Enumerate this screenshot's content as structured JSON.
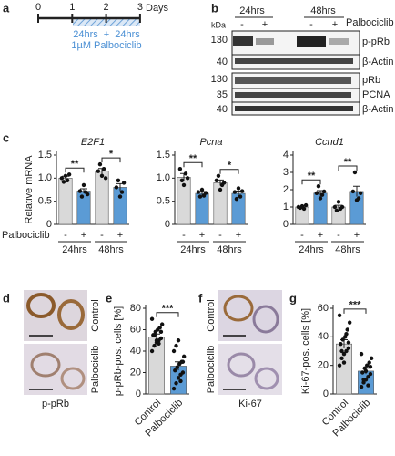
{
  "panel_labels": [
    "a",
    "b",
    "c",
    "d",
    "e",
    "f",
    "g"
  ],
  "timeline": {
    "ticks": [
      0,
      1,
      2,
      3
    ],
    "unit": "Days",
    "phase1": "24hrs",
    "plus": "+",
    "phase2": "24hrs",
    "treatment": "1µM Palbociclib"
  },
  "blot": {
    "time_labels": [
      "24hrs",
      "48hrs"
    ],
    "treatment": "Palbociclib",
    "lane_signs": [
      "-",
      "+",
      "-",
      "+"
    ],
    "kda_unit": "kDa",
    "rows": [
      {
        "kda": 130,
        "protein": "p-pRb"
      },
      {
        "kda": 40,
        "protein": "β-Actin"
      },
      {
        "kda": 130,
        "protein": "pRb"
      },
      {
        "kda": 35,
        "protein": "PCNA"
      },
      {
        "kda": 40,
        "protein": "β-Actin"
      }
    ]
  },
  "histology": [
    {
      "row_labels": [
        "Control",
        "Palbociclib"
      ],
      "stain": "p-pRb"
    },
    {
      "row_labels": [
        "Control",
        "Palbociclib"
      ],
      "stain": "Ki-67"
    }
  ],
  "chart_data": [
    {
      "type": "bar",
      "title": "E2F1",
      "y_label": "Relative mRNA",
      "x_label": "Palbociclib",
      "categories": [
        "-",
        "+",
        "-",
        "+"
      ],
      "groups": [
        "24hrs",
        "48hrs"
      ],
      "colors": [
        "#d9d9d9",
        "#5b9bd5",
        "#d9d9d9",
        "#5b9bd5"
      ],
      "values": [
        1.0,
        0.72,
        1.15,
        0.8
      ],
      "errors": [
        0.04,
        0.05,
        0.06,
        0.08
      ],
      "points": [
        [
          1.0,
          0.92,
          1.05,
          0.95,
          1.08
        ],
        [
          0.72,
          0.6,
          0.85,
          0.7,
          0.65
        ],
        [
          1.15,
          1.3,
          1.05,
          1.2,
          1.0
        ],
        [
          0.8,
          0.95,
          0.6,
          0.7,
          0.9
        ]
      ],
      "significance": [
        "**",
        "*"
      ],
      "ylim": [
        0,
        1.5
      ],
      "yticks": [
        0,
        0.5,
        {
          "value": 1,
          "label": "1.0"
        },
        1.5
      ]
    },
    {
      "type": "bar",
      "title": "Pcna",
      "categories": [
        "-",
        "+",
        "-",
        "+"
      ],
      "groups": [
        "24hrs",
        "48hrs"
      ],
      "colors": [
        "#d9d9d9",
        "#5b9bd5",
        "#d9d9d9",
        "#5b9bd5"
      ],
      "values": [
        1.02,
        0.67,
        0.9,
        0.67
      ],
      "errors": [
        0.08,
        0.04,
        0.06,
        0.05
      ],
      "points": [
        [
          1.2,
          0.95,
          0.85,
          1.1,
          1.0
        ],
        [
          0.7,
          0.6,
          0.75,
          0.62,
          0.68
        ],
        [
          0.95,
          1.05,
          0.75,
          0.85,
          0.9
        ],
        [
          0.7,
          0.55,
          0.78,
          0.6,
          0.72
        ]
      ],
      "significance": [
        "**",
        "*"
      ],
      "ylim": [
        0,
        1.5
      ],
      "yticks": [
        0,
        0.5,
        {
          "value": 1,
          "label": "1.0"
        },
        1.5
      ]
    },
    {
      "type": "bar",
      "title": "Ccnd1",
      "categories": [
        "-",
        "+",
        "-",
        "+"
      ],
      "groups": [
        "24hrs",
        "48hrs"
      ],
      "colors": [
        "#d9d9d9",
        "#5b9bd5",
        "#d9d9d9",
        "#5b9bd5"
      ],
      "values": [
        1.0,
        1.8,
        1.0,
        1.9
      ],
      "errors": [
        0.05,
        0.15,
        0.1,
        0.3
      ],
      "points": [
        [
          1.0,
          0.95,
          1.05,
          0.9,
          1.1
        ],
        [
          1.8,
          2.2,
          1.5,
          1.7,
          1.9
        ],
        [
          1.0,
          0.8,
          1.3,
          0.9,
          1.0
        ],
        [
          1.9,
          3.0,
          1.4,
          1.5,
          1.8
        ]
      ],
      "significance": [
        "**",
        "**"
      ],
      "ylim": [
        0,
        4
      ],
      "yticks": [
        0,
        1,
        2,
        3,
        4
      ]
    },
    {
      "type": "bar",
      "y_label": "p-pRb-pos. cells [%]",
      "categories": [
        "Control",
        "Palbociclib"
      ],
      "colors": [
        "#d9d9d9",
        "#5b9bd5"
      ],
      "values": [
        53,
        26
      ],
      "errors": [
        3,
        4
      ],
      "points": [
        [
          40,
          45,
          48,
          50,
          52,
          55,
          58,
          60,
          62,
          65,
          70,
          55,
          50,
          47,
          58
        ],
        [
          5,
          10,
          15,
          18,
          20,
          22,
          25,
          28,
          30,
          35,
          40,
          45,
          50,
          12,
          30
        ]
      ],
      "significance": [
        "***"
      ],
      "ylim": [
        0,
        80
      ],
      "yticks": [
        0,
        20,
        40,
        60,
        80
      ]
    },
    {
      "type": "bar",
      "y_label": "Ki-67-pos. cells [%]",
      "categories": [
        "Control",
        "Palbociclib"
      ],
      "colors": [
        "#d9d9d9",
        "#5b9bd5"
      ],
      "values": [
        35,
        16
      ],
      "errors": [
        3,
        2
      ],
      "points": [
        [
          20,
          25,
          28,
          30,
          32,
          35,
          38,
          40,
          45,
          50,
          55,
          30,
          22,
          42,
          36
        ],
        [
          5,
          8,
          10,
          12,
          14,
          15,
          18,
          20,
          22,
          25,
          28,
          10,
          16,
          6,
          19
        ]
      ],
      "significance": [
        "***"
      ],
      "ylim": [
        0,
        60
      ],
      "yticks": [
        0,
        20,
        40,
        60
      ]
    }
  ]
}
